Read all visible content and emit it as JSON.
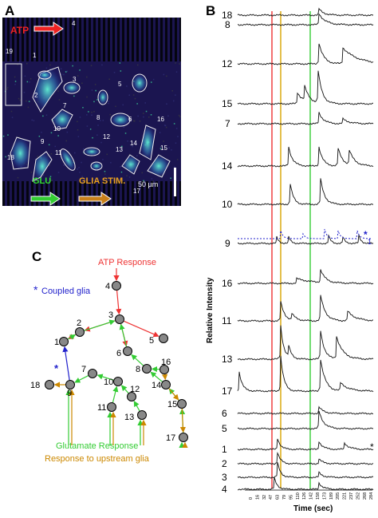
{
  "panels": {
    "a": "A",
    "b": "B",
    "c": "C"
  },
  "panel_a": {
    "atp_label": "ATP",
    "glu_label": "GLU",
    "glia_stim_label": "GLIA STIM.",
    "scale_bar_label": "50 µm",
    "cell_labels": [
      "1",
      "2",
      "3",
      "4",
      "5",
      "6",
      "7",
      "8",
      "9",
      "10",
      "11",
      "12",
      "13",
      "14",
      "15",
      "16",
      "17",
      "18",
      "19"
    ]
  },
  "panel_b": {
    "trace_labels": [
      "18",
      "8",
      "12",
      "15",
      "7",
      "14",
      "10",
      "9",
      "16",
      "11",
      "13",
      "17",
      "6",
      "5",
      "1",
      "2",
      "3",
      "4"
    ],
    "coupled_marker": "*",
    "coupled_trace_label": "1",
    "star_marker": "*",
    "y_axis_label": "Relative Intensity",
    "x_axis_label": "Time (sec)",
    "x_ticks": [
      "0",
      "16",
      "32",
      "47",
      "63",
      "79",
      "95",
      "110",
      "126",
      "142",
      "158",
      "173",
      "189",
      "205",
      "221",
      "237",
      "252",
      "268",
      "284"
    ],
    "marker_line_colors": {
      "atp": "#e33",
      "glia": "#d9a400",
      "glu": "#3c3"
    }
  },
  "panel_c": {
    "atp_response": "ATP Response",
    "coupled_glia": "Coupled glia",
    "coupled_star": "*",
    "glutamate_response": "Glutamate Response",
    "upstream_response": "Response to upstream glia",
    "node_labels": {
      "n1": "1",
      "n2": "2",
      "n3": "3",
      "n4": "4",
      "n5": "5",
      "n6": "6",
      "n7": "7",
      "n8": "8",
      "n9": "9",
      "n10": "10",
      "n11": "11",
      "n12": "12",
      "n13": "13",
      "n14": "14",
      "n15": "15",
      "n16": "16",
      "n17": "17",
      "n18": "18"
    },
    "colors": {
      "atp": "#e33",
      "coupled": "#22c",
      "glutamate": "#3c3",
      "upstream": "#c80"
    }
  }
}
